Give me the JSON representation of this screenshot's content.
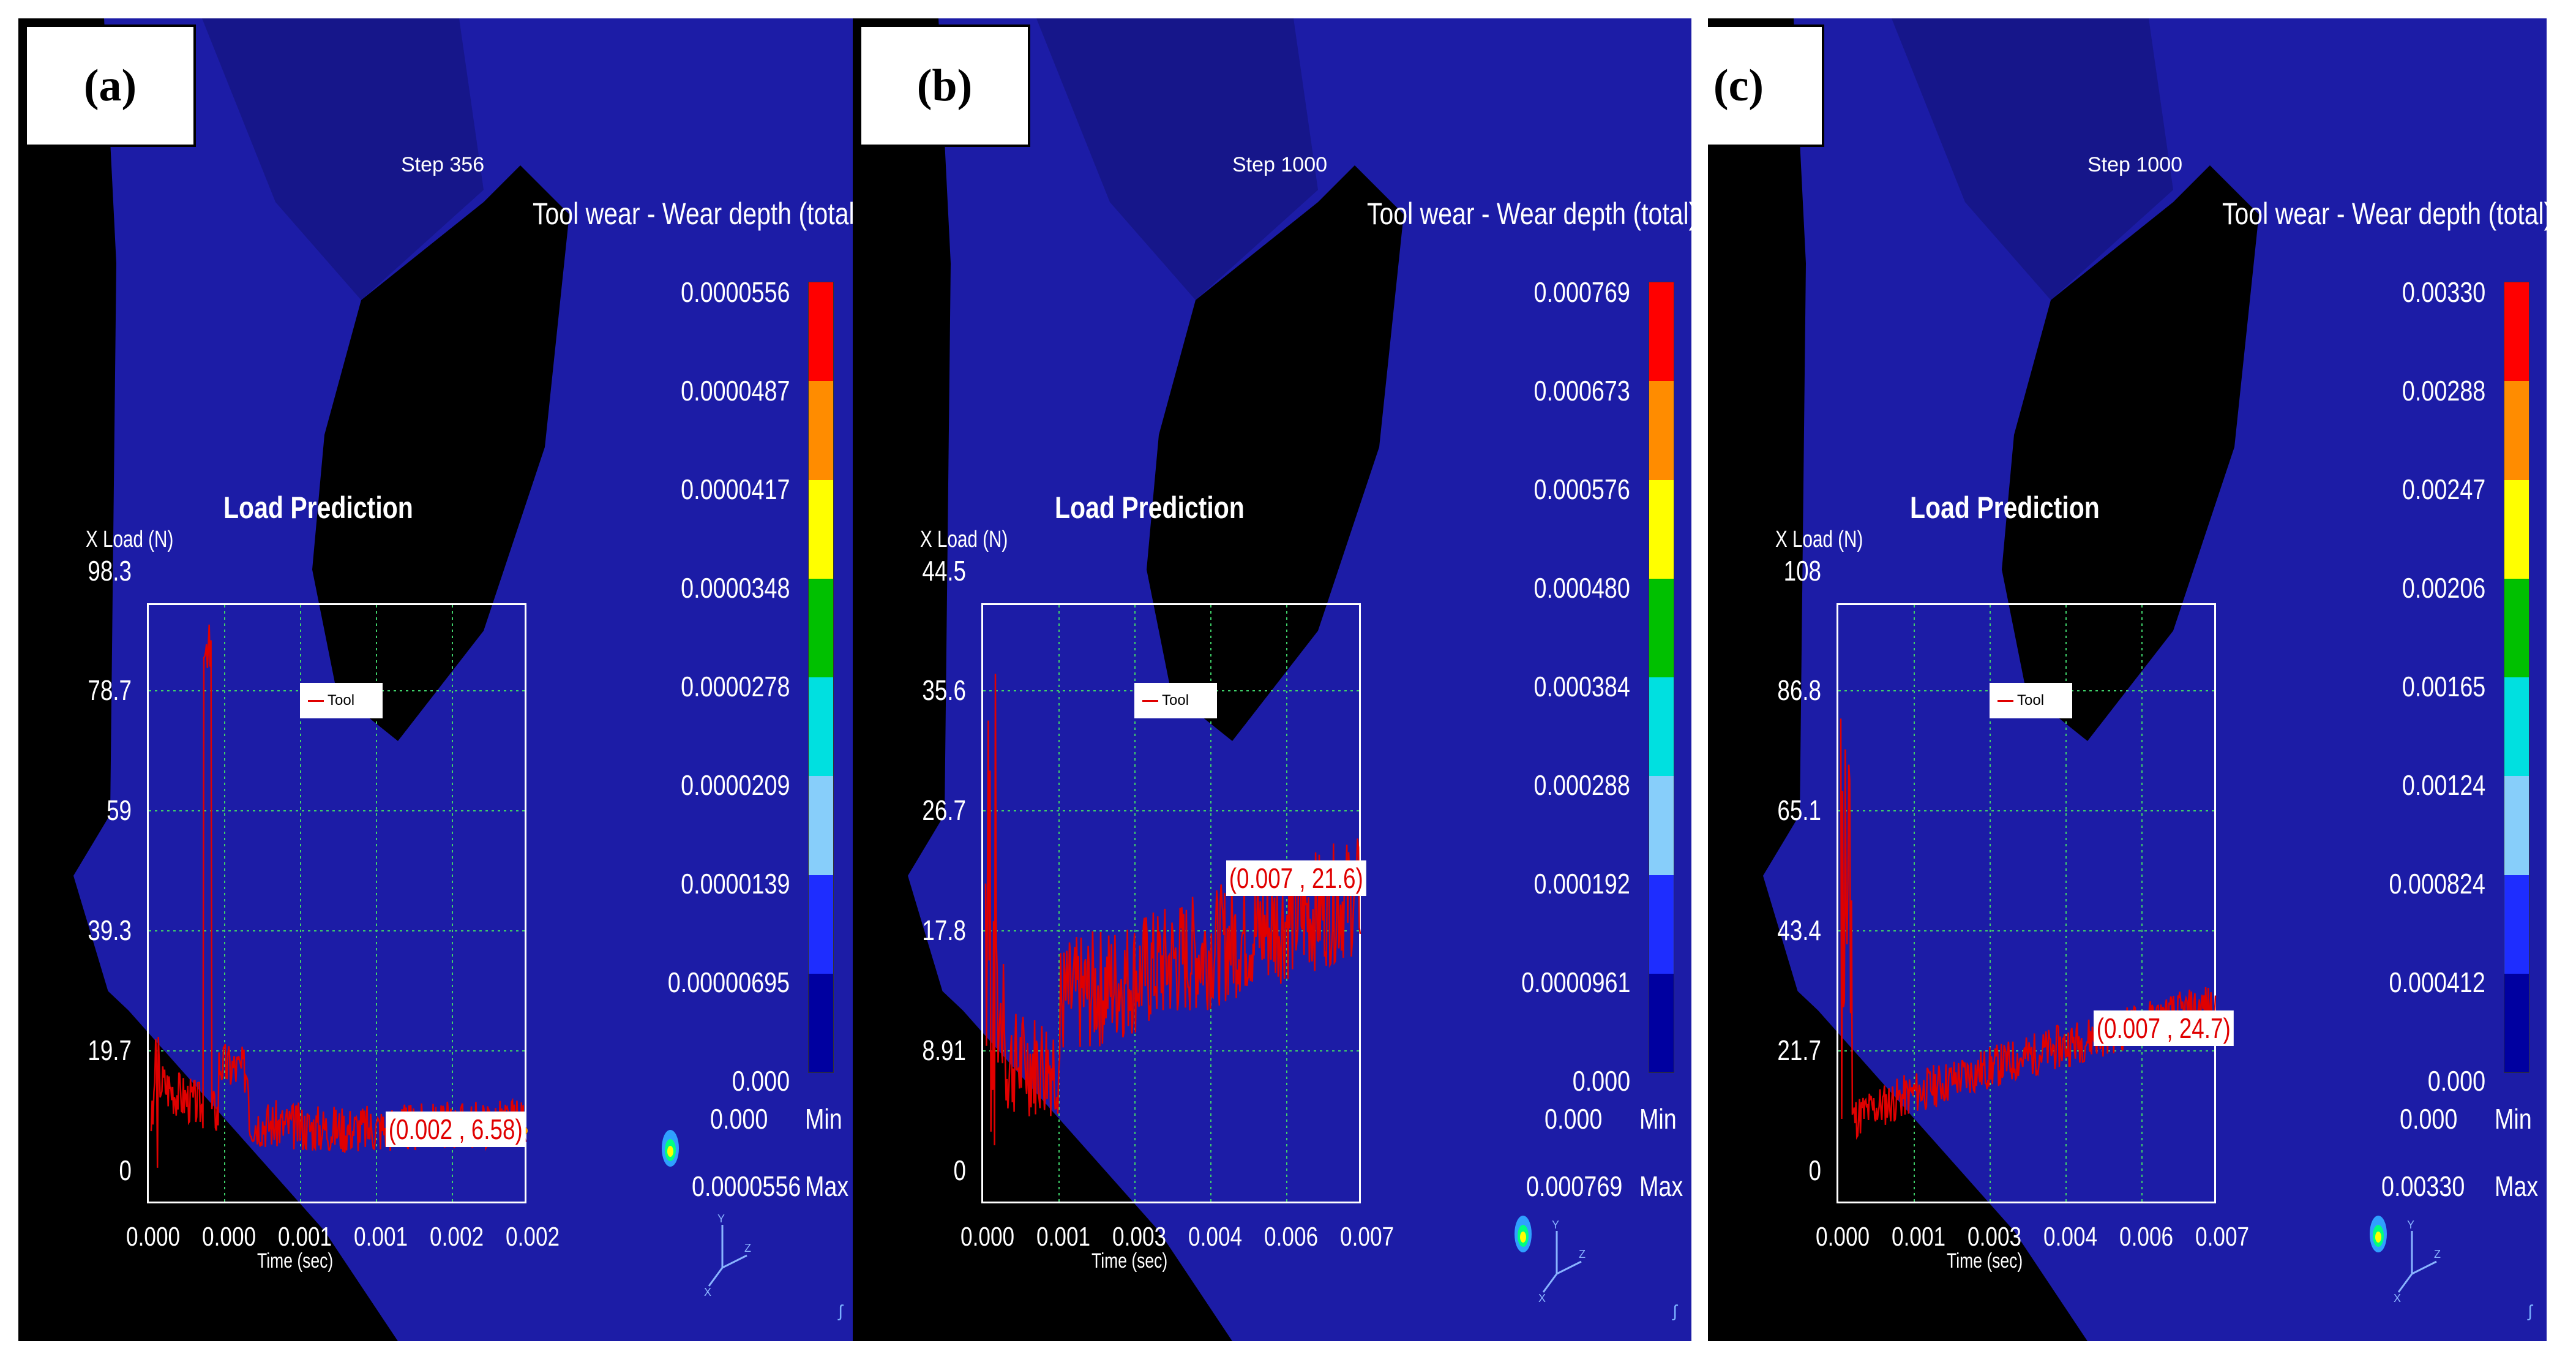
{
  "panels": [
    {
      "label": "(a)",
      "step": "Step  356",
      "colorbar_title": "Tool wear - Wear depth (total) (mm)",
      "colorbar_ticks": [
        "0.0000556",
        "0.0000487",
        "0.0000417",
        "0.0000348",
        "0.0000278",
        "0.0000209",
        "0.0000139",
        "0.00000695",
        "0.000"
      ],
      "min_value": "0.000",
      "min_label": "Min",
      "max_value": "0.0000556",
      "max_label": "Max",
      "chart_title": "Load Prediction",
      "ylabel": "X Load (N)",
      "ymax_label": "98.3",
      "yticks": [
        "78.7",
        "59",
        "39.3",
        "19.7",
        "0"
      ],
      "xticks": [
        "0.000",
        "0.000",
        "0.001",
        "0.001",
        "0.002",
        "0.002"
      ],
      "xlabel": "Time (sec)",
      "legend": "Tool",
      "data_label": "(0.002 , 6.58)",
      "axis_symbol": "ʃ"
    },
    {
      "label": "(b)",
      "step": "Step 1000",
      "colorbar_title": "Tool wear - Wear depth (total) (mm)",
      "colorbar_ticks": [
        "0.000769",
        "0.000673",
        "0.000576",
        "0.000480",
        "0.000384",
        "0.000288",
        "0.000192",
        "0.0000961",
        "0.000"
      ],
      "min_value": "0.000",
      "min_label": "Min",
      "max_value": "0.000769",
      "max_label": "Max",
      "chart_title": "Load Prediction",
      "ylabel": "X Load (N)",
      "ymax_label": "44.5",
      "yticks": [
        "35.6",
        "26.7",
        "17.8",
        "8.91",
        "0"
      ],
      "xticks": [
        "0.000",
        "0.001",
        "0.003",
        "0.004",
        "0.006",
        "0.007"
      ],
      "xlabel": "Time (sec)",
      "legend": "Tool",
      "data_label": "(0.007 , 21.6)",
      "axis_symbol": "ʃ"
    },
    {
      "label": "(c)",
      "step": "Step 1000",
      "colorbar_title": "Tool wear - Wear depth (total) (mm)",
      "colorbar_ticks": [
        "0.00330",
        "0.00288",
        "0.00247",
        "0.00206",
        "0.00165",
        "0.00124",
        "0.000824",
        "0.000412",
        "0.000"
      ],
      "min_value": "0.000",
      "min_label": "Min",
      "max_value": "0.00330",
      "max_label": "Max",
      "chart_title": "Load Prediction",
      "ylabel": "X Load (N)",
      "ymax_label": "108",
      "yticks": [
        "86.8",
        "65.1",
        "43.4",
        "21.7",
        "0"
      ],
      "xticks": [
        "0.000",
        "0.001",
        "0.003",
        "0.004",
        "0.006",
        "0.007"
      ],
      "xlabel": "Time (sec)",
      "legend": "Tool",
      "data_label": "(0.007 , 24.7)",
      "axis_symbol": "ʃ"
    }
  ],
  "colorbar_colors": [
    "#ff0000",
    "#ff8c00",
    "#ffff00",
    "#00c000",
    "#00e0e0",
    "#87cefa",
    "#1e2dff",
    "#0000a0"
  ],
  "chart_data": [
    {
      "type": "line",
      "title": "Load Prediction",
      "xlabel": "Time (sec)",
      "ylabel": "X Load (N)",
      "series": [
        {
          "name": "Tool",
          "seed": 3,
          "profile": "a"
        }
      ],
      "ylim": [
        0,
        98.3
      ],
      "xlim": [
        0,
        0.002
      ],
      "annotation": {
        "x": 0.002,
        "y": 6.58
      }
    },
    {
      "type": "line",
      "title": "Load Prediction",
      "xlabel": "Time (sec)",
      "ylabel": "X Load (N)",
      "series": [
        {
          "name": "Tool",
          "seed": 7,
          "profile": "b"
        }
      ],
      "ylim": [
        0,
        44.5
      ],
      "xlim": [
        0,
        0.007
      ],
      "annotation": {
        "x": 0.007,
        "y": 21.6
      }
    },
    {
      "type": "line",
      "title": "Load Prediction",
      "xlabel": "Time (sec)",
      "ylabel": "X Load (N)",
      "series": [
        {
          "name": "Tool",
          "seed": 11,
          "profile": "c"
        }
      ],
      "ylim": [
        0,
        108
      ],
      "xlim": [
        0,
        0.007
      ],
      "annotation": {
        "x": 0.007,
        "y": 24.7
      }
    }
  ]
}
